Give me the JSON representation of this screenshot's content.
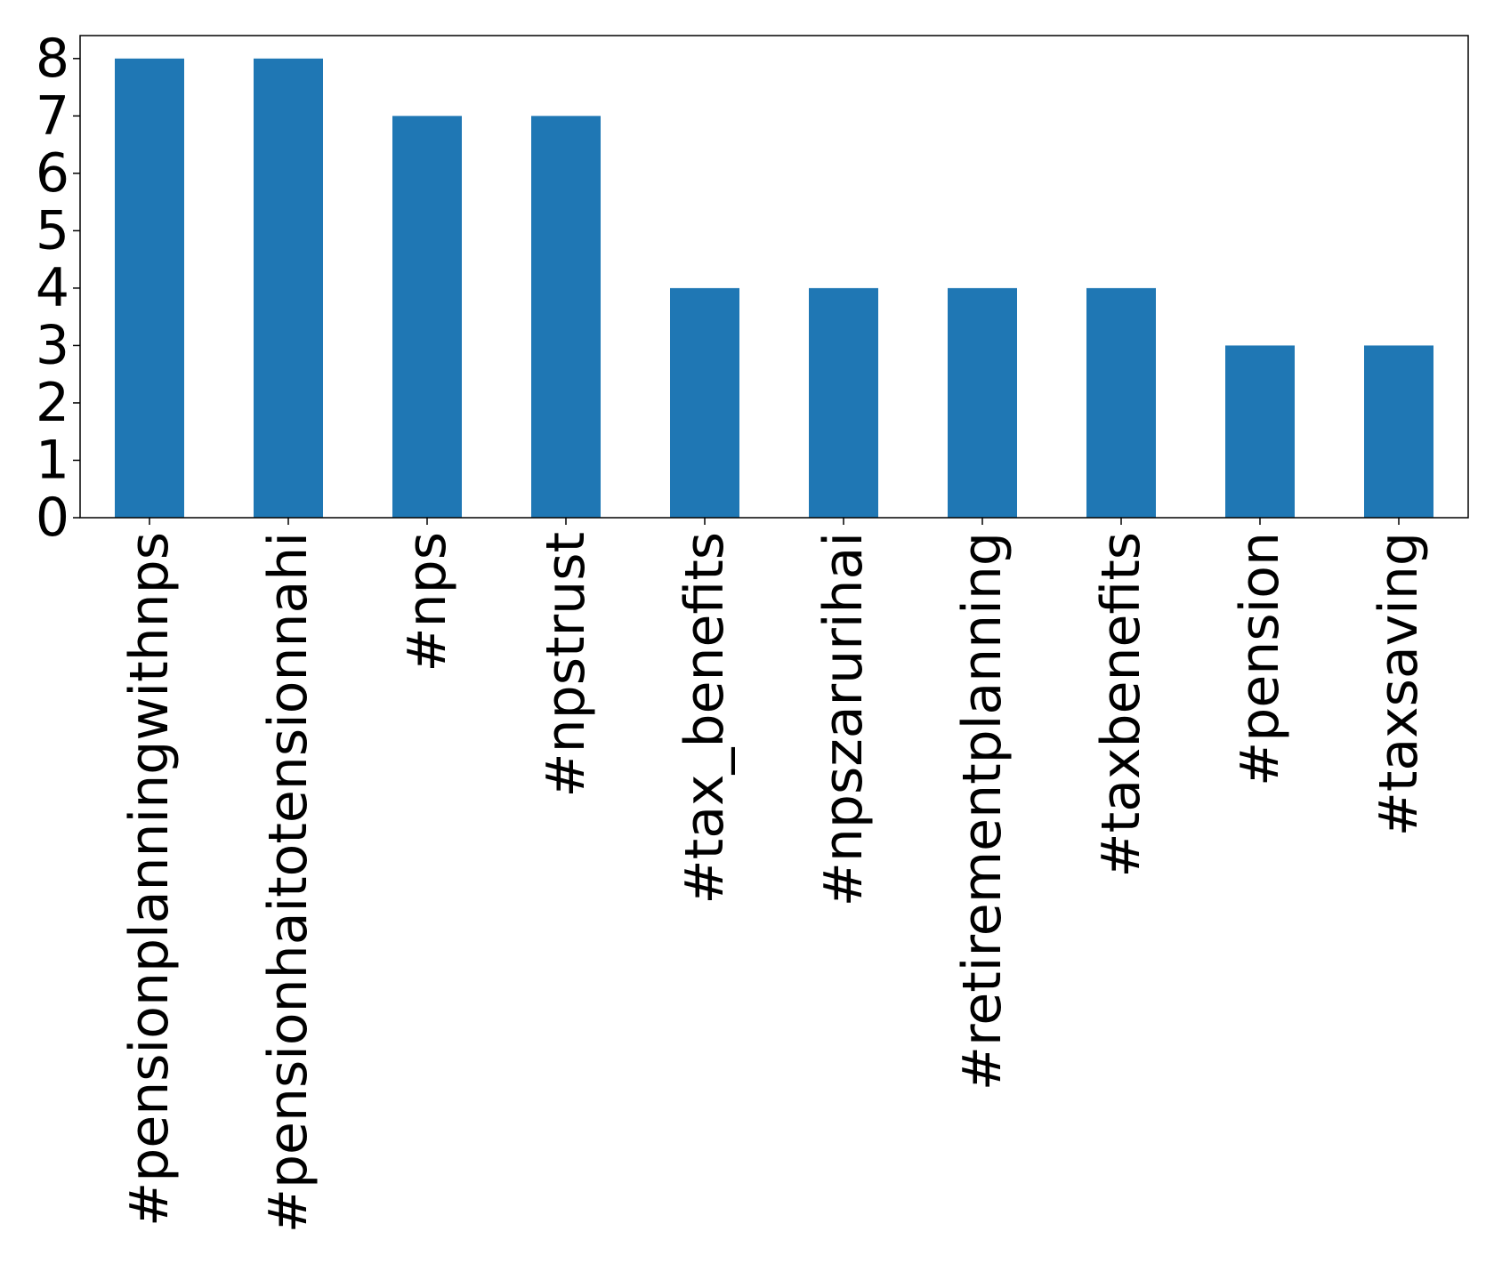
{
  "chart_data": {
    "type": "bar",
    "title": "",
    "xlabel": "",
    "ylabel": "",
    "categories": [
      "#pensionplanningwithnps",
      "#pensionhaitotensionnahi",
      "#nps",
      "#npstrust",
      "#tax_benefits",
      "#npszarurihai",
      "#retirementplanning",
      "#taxbenefits",
      "#pension",
      "#taxsaving"
    ],
    "values": [
      8,
      8,
      7,
      7,
      4,
      4,
      4,
      4,
      3,
      3
    ],
    "ylim": [
      0,
      8.4
    ],
    "yticks": [
      0,
      1,
      2,
      3,
      4,
      5,
      6,
      7,
      8
    ],
    "ytick_labels": [
      "0",
      "1",
      "2",
      "3",
      "4",
      "5",
      "6",
      "7",
      "8"
    ],
    "grid": false,
    "legend": "none",
    "bar_color": "#1f77b4",
    "x_tick_label_rotation": "vertical"
  }
}
